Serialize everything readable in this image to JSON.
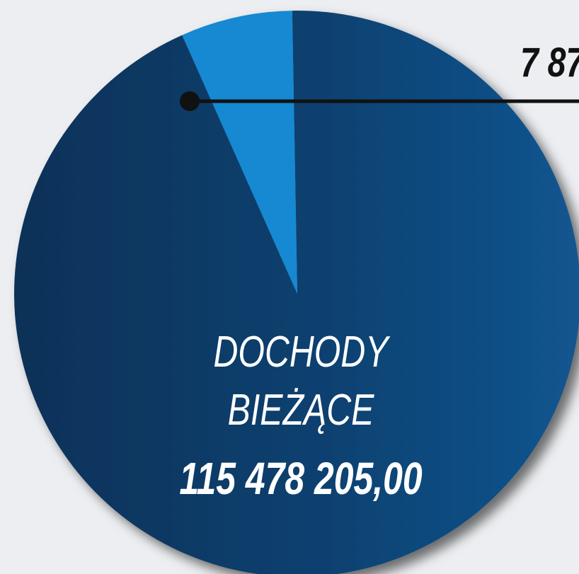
{
  "chart_data": {
    "type": "pie",
    "categories": [
      "DOCHODY BIEŻĄCE",
      null
    ],
    "values": [
      115478205,
      7870000
    ],
    "value_labels": [
      "115 478 205,00",
      null
    ],
    "colors": [
      "#0f4272",
      "#1289d2"
    ],
    "annotations": [
      {
        "text": "7 87"
      }
    ]
  }
}
